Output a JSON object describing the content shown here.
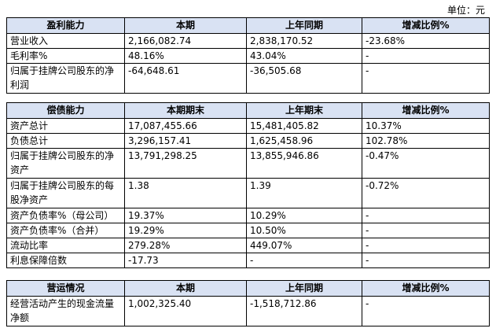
{
  "unit_label": "单位：元",
  "tables": [
    {
      "headers": [
        "盈利能力",
        "本期",
        "上年同期",
        "增减比例%"
      ],
      "rows": [
        {
          "label": "营业收入",
          "a": "2,166,082.74",
          "b": "2,838,170.52",
          "c": "-23.68%",
          "tall": false
        },
        {
          "label": "毛利率%",
          "a": "48.16%",
          "b": "43.04%",
          "c": "-",
          "tall": false
        },
        {
          "label": "归属于挂牌公司股东的净利润",
          "a": "-64,648.61",
          "b": "-36,505.68",
          "c": "-",
          "tall": true
        }
      ]
    },
    {
      "headers": [
        "偿债能力",
        "本期期末",
        "上年期末",
        "增减比例%"
      ],
      "rows": [
        {
          "label": "资产总计",
          "a": "17,087,455.66",
          "b": "15,481,405.82",
          "c": "10.37%",
          "tall": false
        },
        {
          "label": "负债总计",
          "a": "3,296,157.41",
          "b": "1,625,458.96",
          "c": "102.78%",
          "tall": false
        },
        {
          "label": "归属于挂牌公司股东的净资产",
          "a": "13,791,298.25",
          "b": "13,855,946.86",
          "c": "-0.47%",
          "tall": true
        },
        {
          "label": "归属于挂牌公司股东的每股净资产",
          "a": "1.38",
          "b": "1.39",
          "c": "-0.72%",
          "tall": true
        },
        {
          "label": "资产负债率%（母公司）",
          "a": "19.37%",
          "b": "10.29%",
          "c": "-",
          "tall": false
        },
        {
          "label": "资产负债率%（合并）",
          "a": "19.29%",
          "b": "10.50%",
          "c": "-",
          "tall": false
        },
        {
          "label": "流动比率",
          "a": "279.28%",
          "b": "449.07%",
          "c": "-",
          "tall": false
        },
        {
          "label": "利息保障倍数",
          "a": "-17.73",
          "b": "-",
          "c": "-",
          "tall": false
        }
      ]
    },
    {
      "headers": [
        "营运情况",
        "本期",
        "上年同期",
        "增减比例%"
      ],
      "rows": [
        {
          "label": "经营活动产生的现金流量净额",
          "a": "1,002,325.40",
          "b": "-1,518,712.86",
          "c": "-",
          "tall": true
        }
      ]
    }
  ]
}
